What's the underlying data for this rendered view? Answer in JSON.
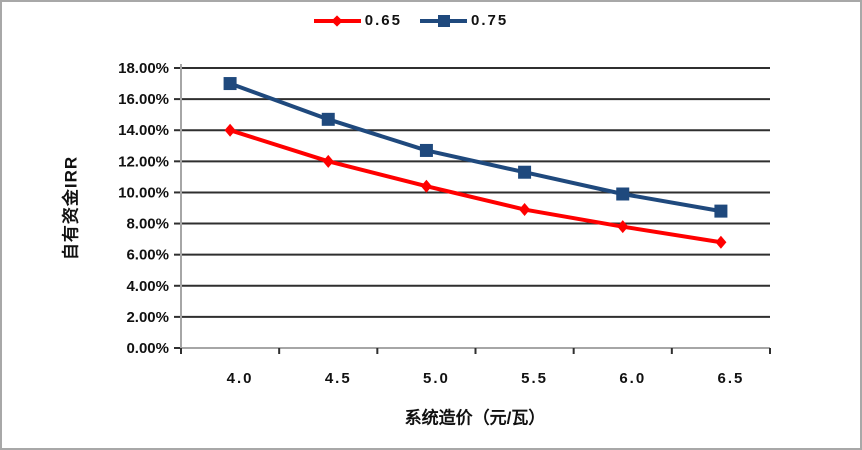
{
  "chart_data": {
    "type": "line",
    "title": "",
    "x_categories": [
      "4.0",
      "4.5",
      "5.0",
      "5.5",
      "6.0",
      "6.5"
    ],
    "series": [
      {
        "name": "0.65",
        "color": "#FF0000",
        "marker": "diamond",
        "values": [
          14.0,
          12.0,
          10.4,
          8.9,
          7.8,
          6.8
        ]
      },
      {
        "name": "0.75",
        "color": "#1F497D",
        "marker": "square",
        "values": [
          17.0,
          14.7,
          12.7,
          11.3,
          9.9,
          8.8
        ]
      }
    ],
    "xlabel": "系统造价（元/瓦）",
    "ylabel": "自有资金IRR",
    "ylim": [
      0,
      18
    ],
    "ytick_step": 2,
    "ytick_format": {
      "decimals": 2,
      "suffix": "%"
    },
    "grid": true,
    "legend_position": "top"
  }
}
